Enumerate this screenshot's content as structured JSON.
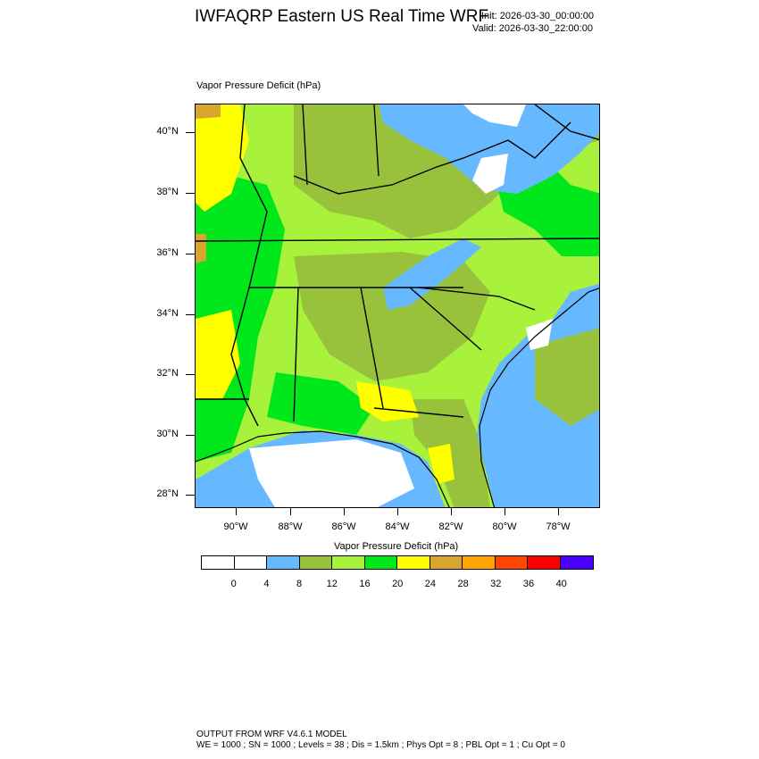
{
  "header": {
    "title": "IWFAQRP Eastern US Real Time WRF",
    "init": "Init: 2026-03-30_00:00:00",
    "valid": "Valid: 2026-03-30_22:00:00"
  },
  "map": {
    "field_title": "Vapor Pressure Deficit   (hPa)",
    "lat_labels": [
      "40°N",
      "38°N",
      "36°N",
      "34°N",
      "32°N",
      "30°N",
      "28°N"
    ],
    "lon_labels": [
      "90°W",
      "88°W",
      "86°W",
      "84°W",
      "82°W",
      "80°W",
      "78°W"
    ],
    "colors": {
      "white": "#ffffff",
      "sky": "#66b8ff",
      "olive": "#99c23c",
      "lime": "#a8f23c",
      "green": "#00e81c",
      "yellow": "#ffff00",
      "tan": "#d8a530"
    }
  },
  "colorbar": {
    "title": "Vapor Pressure Deficit  (hPa)",
    "colors": [
      "#ffffff",
      "#ffffff",
      "#66b8ff",
      "#99c23c",
      "#a8f23c",
      "#00e81c",
      "#ffff00",
      "#d8a530",
      "#ffa500",
      "#ff4500",
      "#ff0000",
      "#4b00ff"
    ],
    "labels": [
      "0",
      "4",
      "8",
      "12",
      "16",
      "20",
      "24",
      "28",
      "32",
      "36",
      "40"
    ]
  },
  "footer": {
    "line1": "OUTPUT FROM WRF V4.6.1 MODEL",
    "line2": "WE = 1000 ; SN = 1000 ; Levels = 38 ; Dis = 1.5km ; Phys Opt = 8 ; PBL Opt = 1 ; Cu Opt = 0"
  }
}
